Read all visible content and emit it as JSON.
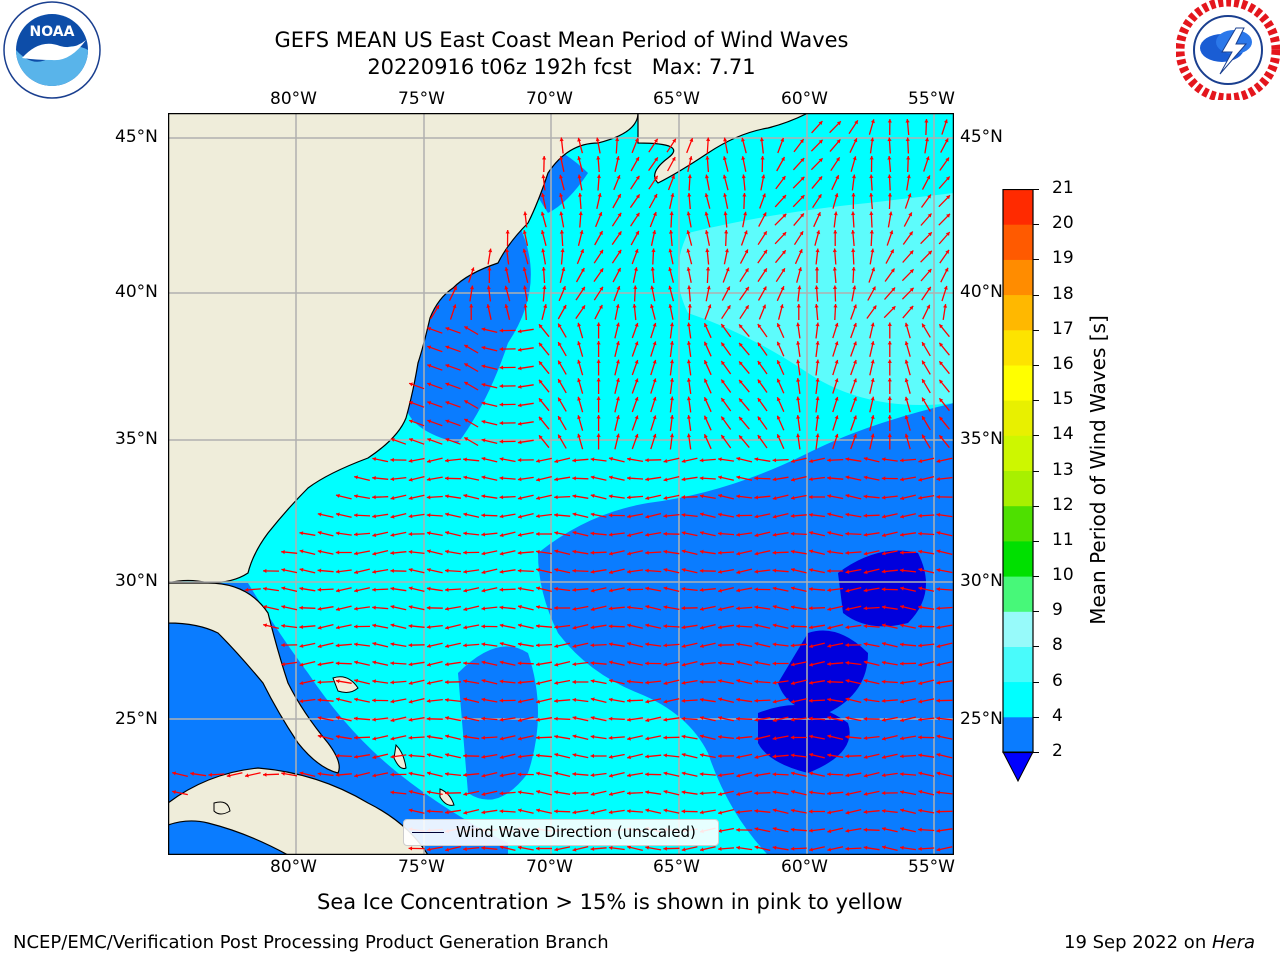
{
  "header": {
    "title_line1": "GEFS MEAN US East Coast Mean Period of Wind Waves",
    "title_line2": "20220916 t06z 192h fcst   Max: 7.71"
  },
  "logos": {
    "noaa": {
      "text": "NOAA",
      "ring_text": "NATIONAL OCEANIC AND ATMOSPHERIC ADMINISTRATION · U.S. DEPARTMENT OF COMMERCE"
    },
    "nws": {
      "ring_text": "NATIONAL WEATHER SERVICE"
    }
  },
  "map": {
    "longitude_labels": [
      "80°W",
      "75°W",
      "70°W",
      "65°W",
      "60°W",
      "55°W"
    ],
    "latitude_labels": [
      "45°N",
      "40°N",
      "35°N",
      "30°N",
      "25°N"
    ],
    "legend_label": "Wind Wave Direction (unscaled)",
    "colors": {
      "land": "#efedda",
      "ocean_blue": "#0a7cff",
      "cyan": "#00ffff",
      "light_cyan": "#5dfcfc",
      "dark_blue": "#0000dd",
      "arrow": "#ff0000",
      "grid": "#b0b0b0"
    }
  },
  "colorbar": {
    "label": "Mean Period of Wind Waves [s]",
    "tick_labels": [
      "2",
      "4",
      "6",
      "8",
      "9",
      "10",
      "11",
      "12",
      "13",
      "14",
      "15",
      "16",
      "17",
      "18",
      "19",
      "20",
      "21"
    ],
    "colors": [
      "#0a7cff",
      "#00ffff",
      "#49fbfb",
      "#97fafa",
      "#47f879",
      "#00e000",
      "#4ee000",
      "#a8f000",
      "#cdf700",
      "#e8f000",
      "#ffff00",
      "#fde300",
      "#ffb800",
      "#ff8c00",
      "#ff5a00",
      "#ff2a00",
      "#ff0000"
    ],
    "under_color": "#0000ff"
  },
  "footer": {
    "note": "Sea Ice Concentration > 15% is shown in pink to yellow",
    "credit": "NCEP/EMC/Verification Post Processing Product Generation Branch",
    "date": "19 Sep 2022 on ",
    "host": "Hera"
  }
}
